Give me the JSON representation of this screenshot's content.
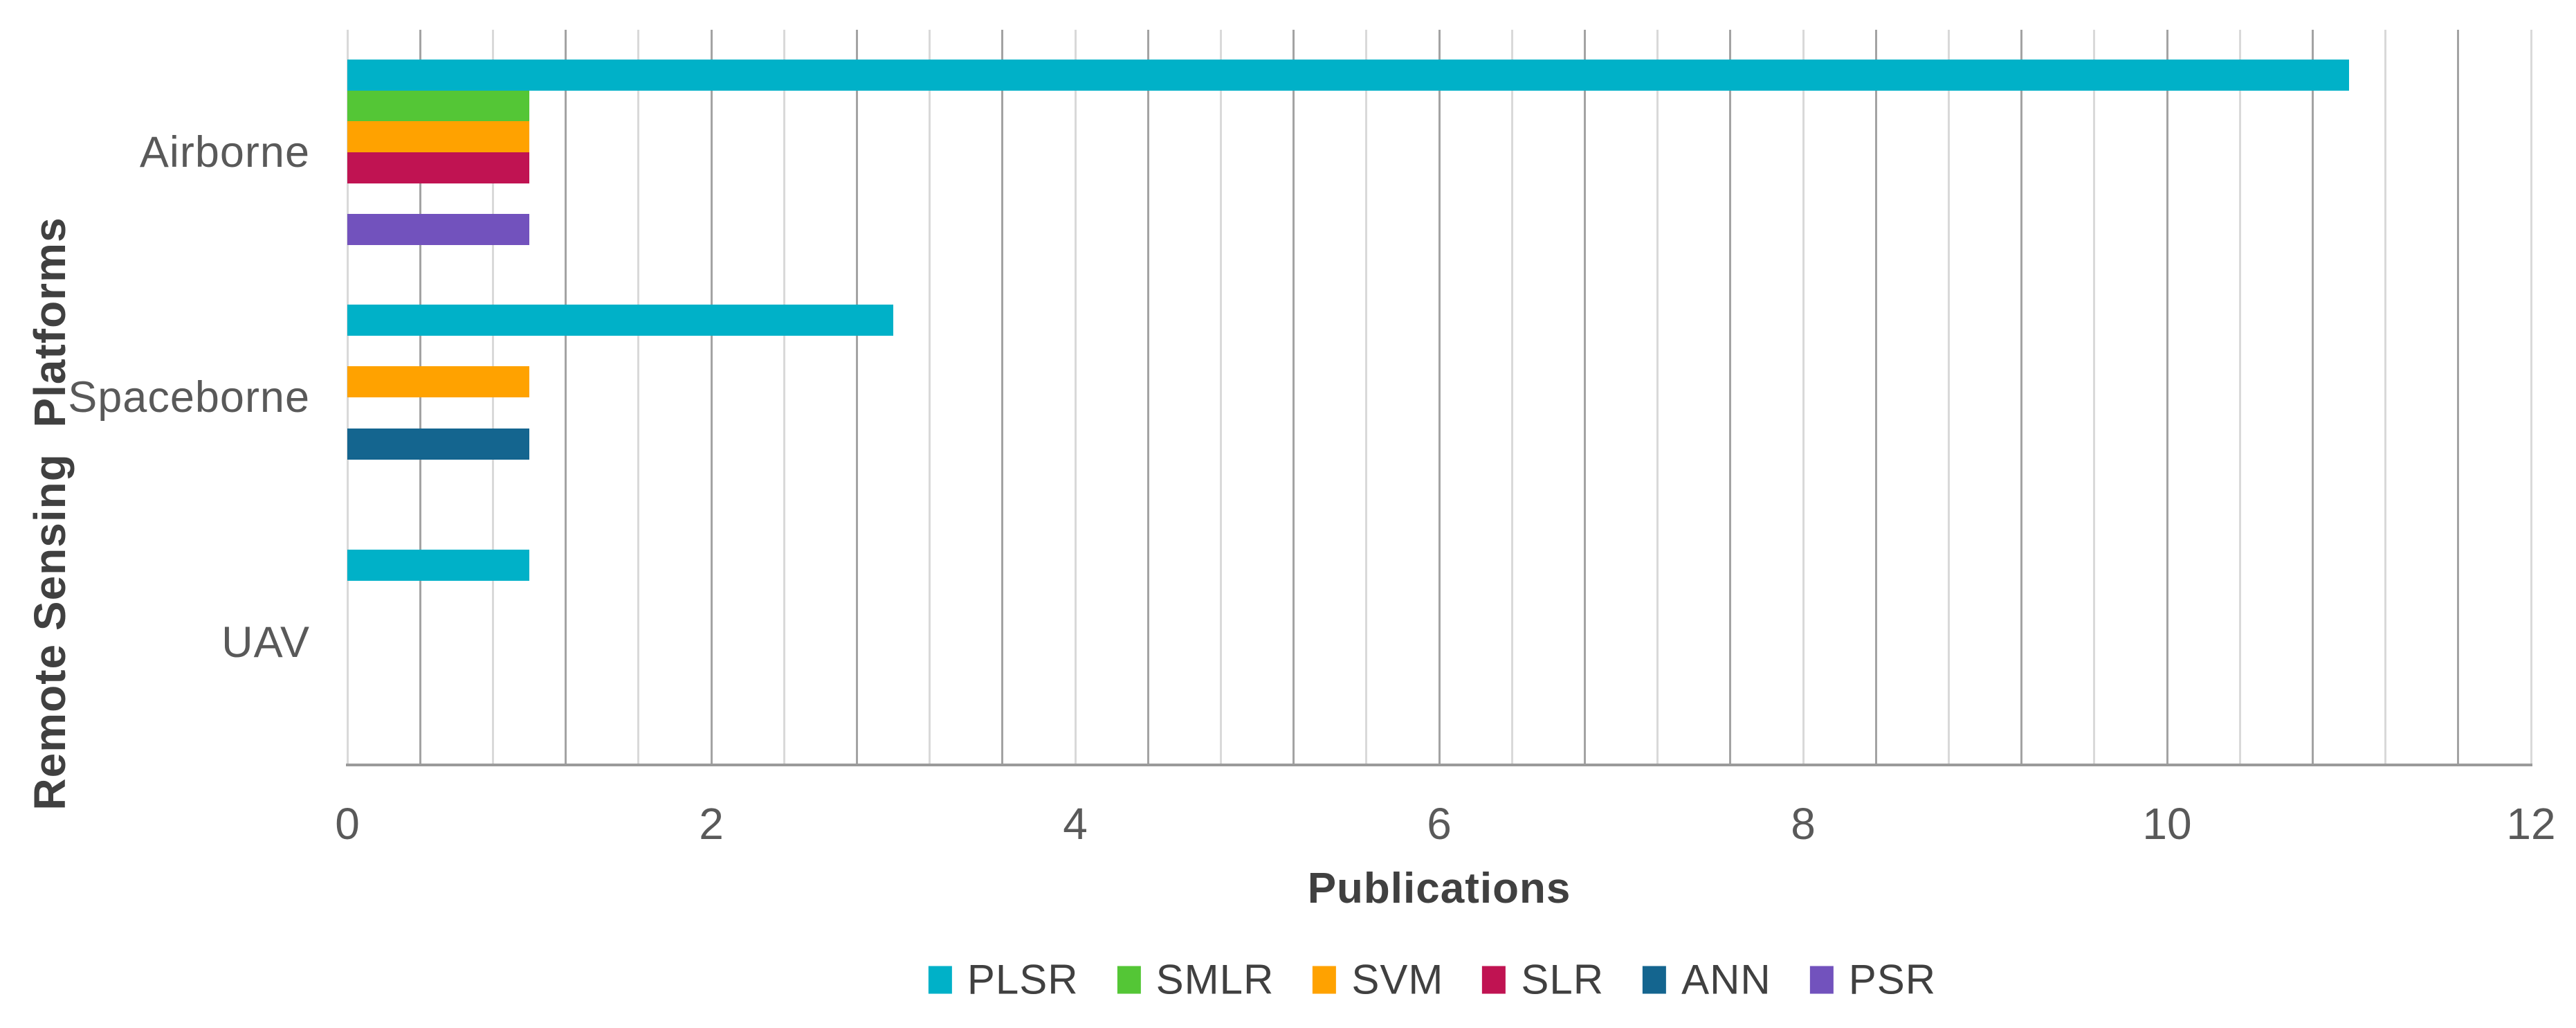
{
  "figure": {
    "background": "#ffffff",
    "text_color_titles": "#404040",
    "text_color_ticks": "#595959"
  },
  "chart_data": {
    "type": "bar",
    "orientation": "horizontal",
    "title": "",
    "xlabel": "Publications",
    "ylabel": "Remote Sensing  Platforms",
    "categories": [
      "Airborne",
      "Spaceborne",
      "UAV"
    ],
    "series": [
      {
        "name": "PLSR",
        "color": "#00B1C8",
        "values": [
          11,
          3,
          1
        ]
      },
      {
        "name": "SMLR",
        "color": "#54C636",
        "values": [
          1,
          0,
          0
        ]
      },
      {
        "name": "SVM",
        "color": "#FFA200",
        "values": [
          1,
          1,
          0
        ]
      },
      {
        "name": "SLR",
        "color": "#C01352",
        "values": [
          1,
          0,
          0
        ]
      },
      {
        "name": "ANN",
        "color": "#14658F",
        "values": [
          0,
          1,
          0
        ]
      },
      {
        "name": "PSR",
        "color": "#7252BD",
        "values": [
          1,
          0,
          0
        ]
      }
    ],
    "x_axis": {
      "min": 0,
      "max": 12,
      "major_tick_interval": 2,
      "minor_gridline_interval": 0.4,
      "tick_labels": [
        "0",
        "2",
        "4",
        "6",
        "8",
        "10",
        "12"
      ]
    },
    "y_axis": {
      "category_order_top_to_bottom": [
        "Airborne",
        "Spaceborne",
        "UAV"
      ]
    },
    "legend": {
      "position": "bottom-center",
      "entries": [
        "PLSR",
        "SMLR",
        "SVM",
        "SLR",
        "ANN",
        "PSR"
      ]
    },
    "grid": "vertical gridlines, alternating light/dark every 0.4 units"
  }
}
